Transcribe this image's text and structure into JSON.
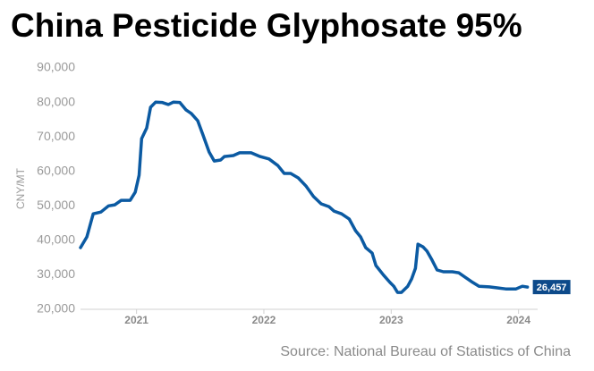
{
  "chart_data": {
    "type": "line",
    "title": "China Pesticide Glyphosate 95%",
    "y_label": "CNY/MT",
    "source": "Source: National Bureau of Statistics of China",
    "color": "#0b5aa2",
    "label_color": "#0d4a8a",
    "x": [
      2020.56,
      2020.61,
      2020.66,
      2020.72,
      2020.78,
      2020.83,
      2020.88,
      2020.95,
      2020.99,
      2021.02,
      2021.04,
      2021.08,
      2021.11,
      2021.15,
      2021.2,
      2021.25,
      2021.29,
      2021.34,
      2021.39,
      2021.43,
      2021.48,
      2021.52,
      2021.57,
      2021.61,
      2021.66,
      2021.69,
      2021.76,
      2021.81,
      2021.9,
      2021.97,
      2022.04,
      2022.11,
      2022.16,
      2022.21,
      2022.27,
      2022.33,
      2022.39,
      2022.45,
      2022.51,
      2022.55,
      2022.61,
      2022.67,
      2022.72,
      2022.76,
      2022.8,
      2022.85,
      2022.88,
      2022.94,
      2022.99,
      2023.02,
      2023.05,
      2023.08,
      2023.13,
      2023.16,
      2023.19,
      2023.21,
      2023.25,
      2023.28,
      2023.32,
      2023.36,
      2023.41,
      2023.48,
      2023.53,
      2023.58,
      2023.64,
      2023.69,
      2023.77,
      2023.84,
      2023.9,
      2023.98,
      2024.03,
      2024.07
    ],
    "values": [
      37900,
      41000,
      47700,
      48200,
      50000,
      50300,
      51600,
      51600,
      54000,
      58900,
      69500,
      72600,
      78600,
      80100,
      80000,
      79400,
      80100,
      80000,
      77800,
      76800,
      74700,
      70800,
      65600,
      63000,
      63300,
      64300,
      64600,
      65400,
      65400,
      64300,
      63600,
      61700,
      59400,
      59400,
      58100,
      55800,
      52700,
      50600,
      49800,
      48500,
      47700,
      46200,
      42800,
      41000,
      37900,
      36300,
      32700,
      29900,
      27800,
      26700,
      24900,
      24900,
      26700,
      28800,
      31900,
      38900,
      38100,
      36900,
      34300,
      31400,
      30900,
      30900,
      30600,
      29300,
      27800,
      26700,
      26500,
      26200,
      25900,
      25900,
      26700,
      26457
    ],
    "last_label": "26,457",
    "xlim": [
      2020.56,
      2024.15
    ],
    "xticks": [
      2021,
      2022,
      2023,
      2024
    ],
    "ylim": [
      20000,
      90000
    ],
    "yticks": [
      {
        "value": 20000,
        "label": "20,000"
      },
      {
        "value": 30000,
        "label": "30,000"
      },
      {
        "value": 40000,
        "label": "40,000"
      },
      {
        "value": 50000,
        "label": "50,000"
      },
      {
        "value": 60000,
        "label": "60,000"
      },
      {
        "value": 70000,
        "label": "70,000"
      },
      {
        "value": 80000,
        "label": "80,000"
      },
      {
        "value": 90000,
        "label": "90,000"
      }
    ]
  }
}
